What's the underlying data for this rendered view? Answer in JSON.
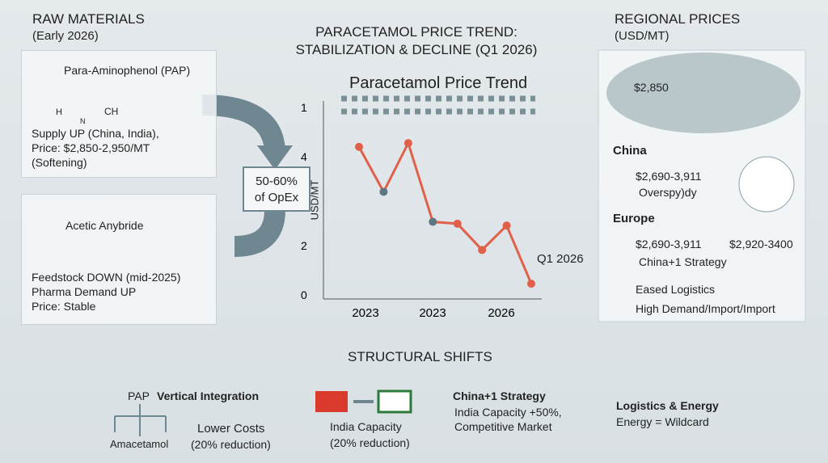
{
  "header": {
    "left_title": "RAW MATERIALS",
    "left_subtitle": "(Early 2026)",
    "main_title_1": "PARACETAMOL PRICE TREND:",
    "main_title_2": "STABILIZATION & DECLINE (Q1 2026)",
    "right_title": "REGIONAL PRICES",
    "right_subtitle": "(USD/MT)"
  },
  "raw_materials": [
    {
      "name": "Para-Aminophenol (PAP)",
      "molecule_labels": [
        "H",
        "CH",
        "N"
      ],
      "lines": [
        "Supply UP (China, India),",
        "Price: $2,850-2,950/MT",
        "(Softening)"
      ]
    },
    {
      "name": "Acetic Anybride",
      "lines": [
        "Feedstock DOWN (mid-2025)",
        "Pharma Demand UP",
        "Price: Stable"
      ]
    }
  ],
  "opex_box": [
    "50-60%",
    "of OpEx"
  ],
  "chart_data": {
    "type": "line",
    "title": "Paracetamol Price Trend",
    "y_label": "USD/MT",
    "y_labels": [
      "1",
      "4",
      "2",
      "0"
    ],
    "x_labels": [
      "2023",
      "2023",
      "2026"
    ],
    "annotation": "Q1 2026",
    "categories": [
      null,
      null,
      null,
      null,
      null,
      null,
      null,
      null
    ],
    "values": [
      0.79,
      0.55,
      0.81,
      0.39,
      0.38,
      0.24,
      0.37,
      0.06
    ],
    "color": "#e0604a",
    "ylim": [
      0,
      1
    ]
  },
  "regional": {
    "map_price": "$2,850",
    "china": {
      "heading": "China",
      "price": "$2,690-3,911",
      "note": "Overspy)dy"
    },
    "europe": {
      "heading": "Europe",
      "price": "$2,690-3,911",
      "price2": "$2,920-3400",
      "note": "China+1 Strategy"
    },
    "logistics": [
      "Eased Logistics",
      "High Demand/Import/Import"
    ]
  },
  "structural": {
    "title": "STRUCTURAL SHIFTS",
    "pap": {
      "label": "PAP",
      "title": "Vertical Integration",
      "sub": "Amacetamol",
      "result": "Lower Costs",
      "result2": "(20% reduction)"
    },
    "india": [
      "India Capacity",
      "(20% reduction)"
    ],
    "china_plus_one": {
      "title": "China+1 Strategy",
      "lines": [
        "India Capacity +50%,",
        "Competitive Market"
      ]
    },
    "logistics": {
      "title": "Logistics & Energy",
      "line": "Energy = Wildcard"
    }
  }
}
